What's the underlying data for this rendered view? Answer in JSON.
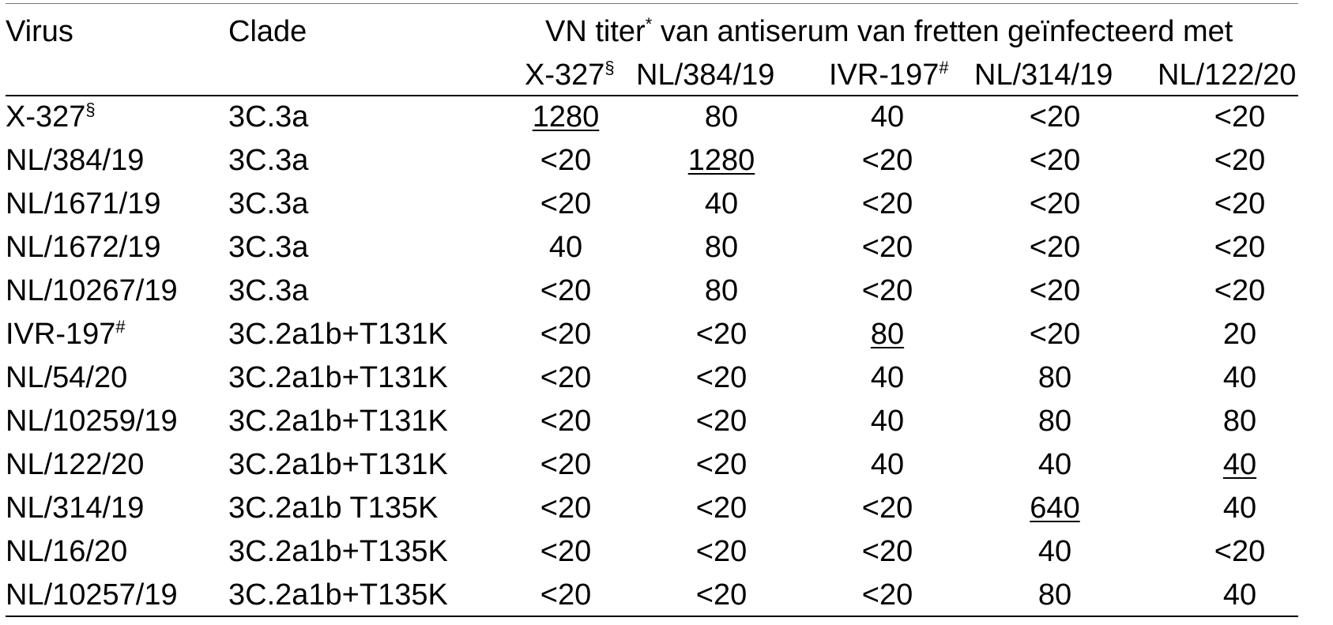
{
  "header": {
    "virus": "Virus",
    "clade": "Clade",
    "span_main": "VN titer",
    "span_main_sup": "*",
    "span_rest": " van antiserum van fretten geïnfecteerd met",
    "antisera": [
      {
        "name": "X-327",
        "sup": "§"
      },
      {
        "name": "NL/384/19",
        "sup": ""
      },
      {
        "name": "IVR-197",
        "sup": "#"
      },
      {
        "name": "NL/314/19",
        "sup": ""
      },
      {
        "name": "NL/122/20",
        "sup": ""
      }
    ]
  },
  "rows": [
    {
      "virus": "X-327",
      "virus_sup": "§",
      "clade": "3C.3a",
      "titers": [
        "1280",
        "80",
        "40",
        "<20",
        "<20"
      ],
      "homologous": 0
    },
    {
      "virus": "NL/384/19",
      "virus_sup": "",
      "clade": "3C.3a",
      "titers": [
        "<20",
        "1280",
        "<20",
        "<20",
        "<20"
      ],
      "homologous": 1
    },
    {
      "virus": "NL/1671/19",
      "virus_sup": "",
      "clade": "3C.3a",
      "titers": [
        "<20",
        "40",
        "<20",
        "<20",
        "<20"
      ],
      "homologous": -1
    },
    {
      "virus": "NL/1672/19",
      "virus_sup": "",
      "clade": "3C.3a",
      "titers": [
        "40",
        "80",
        "<20",
        "<20",
        "<20"
      ],
      "homologous": -1
    },
    {
      "virus": "NL/10267/19",
      "virus_sup": "",
      "clade": "3C.3a",
      "titers": [
        "<20",
        "80",
        "<20",
        "<20",
        "<20"
      ],
      "homologous": -1
    },
    {
      "virus": "IVR-197",
      "virus_sup": "#",
      "clade": "3C.2a1b+T131K",
      "titers": [
        "<20",
        "<20",
        "80",
        "<20",
        "20"
      ],
      "homologous": 2
    },
    {
      "virus": "NL/54/20",
      "virus_sup": "",
      "clade": "3C.2a1b+T131K",
      "titers": [
        "<20",
        "<20",
        "40",
        "80",
        "40"
      ],
      "homologous": -1
    },
    {
      "virus": "NL/10259/19",
      "virus_sup": "",
      "clade": "3C.2a1b+T131K",
      "titers": [
        "<20",
        "<20",
        "40",
        "80",
        "80"
      ],
      "homologous": -1
    },
    {
      "virus": "NL/122/20",
      "virus_sup": "",
      "clade": "3C.2a1b+T131K",
      "titers": [
        "<20",
        "<20",
        "40",
        "40",
        "40"
      ],
      "homologous": 4
    },
    {
      "virus": "NL/314/19",
      "virus_sup": "",
      "clade": "3C.2a1b T135K",
      "titers": [
        "<20",
        "<20",
        "<20",
        "640",
        "40"
      ],
      "homologous": 3
    },
    {
      "virus": "NL/16/20",
      "virus_sup": "",
      "clade": "3C.2a1b+T135K",
      "titers": [
        "<20",
        "<20",
        "<20",
        "40",
        "<20"
      ],
      "homologous": -1
    },
    {
      "virus": "NL/10257/19",
      "virus_sup": "",
      "clade": "3C.2a1b+T135K",
      "titers": [
        "<20",
        "<20",
        "<20",
        "80",
        "40"
      ],
      "homologous": -1
    }
  ]
}
